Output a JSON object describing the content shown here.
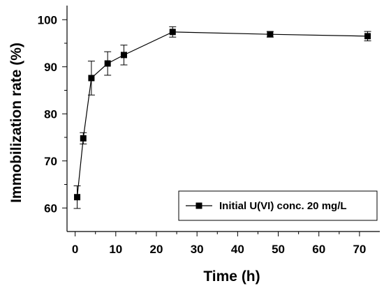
{
  "chart_data": {
    "type": "line",
    "title": "",
    "xlabel": "Time (h)",
    "ylabel": "Immobilization rate (%)",
    "xlim": [
      -2,
      75
    ],
    "ylim": [
      55,
      103
    ],
    "xticks": [
      0,
      10,
      20,
      30,
      40,
      50,
      60,
      70
    ],
    "yticks": [
      60,
      70,
      80,
      90,
      100
    ],
    "grid": false,
    "legend_position": "bottom-right",
    "series": [
      {
        "name": "Initial U(VI) conc. 20 mg/L",
        "color": "#000000",
        "marker": "square",
        "x": [
          0.5,
          2,
          4,
          8,
          12,
          24,
          48,
          72
        ],
        "y": [
          62.3,
          74.8,
          87.6,
          90.7,
          92.5,
          97.4,
          96.9,
          96.5
        ],
        "error": [
          2.4,
          1.2,
          3.6,
          2.5,
          2.1,
          1.1,
          0.6,
          1.0
        ]
      }
    ]
  }
}
